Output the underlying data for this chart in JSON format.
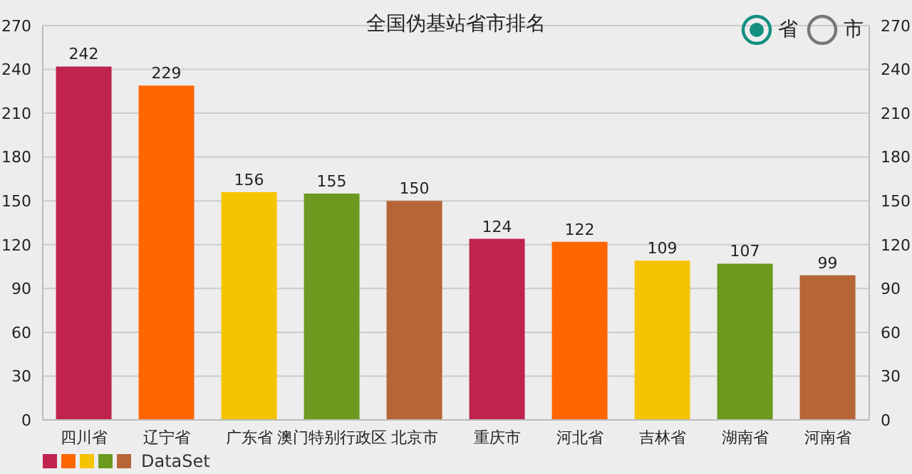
{
  "chart_data": {
    "type": "bar",
    "title": "全国伪基站省市排名",
    "categories": [
      "四川省",
      "辽宁省",
      "广东省",
      "澳门特别行政区",
      "北京市",
      "重庆市",
      "河北省",
      "吉林省",
      "湖南省",
      "河南省"
    ],
    "series": [
      {
        "name": "DataSet",
        "colors": [
          "#c1234f",
          "#ff6600",
          "#f5c400",
          "#6b9a1f",
          "#b56536",
          "#c1234f",
          "#ff6600",
          "#f5c400",
          "#6b9a1f",
          "#b56536"
        ],
        "values": [
          242,
          229,
          156,
          155,
          150,
          124,
          122,
          109,
          107,
          99
        ]
      }
    ],
    "ylim": [
      0,
      270
    ],
    "yticks": [
      0,
      30,
      60,
      90,
      120,
      150,
      180,
      210,
      240,
      270
    ],
    "y2lim": [
      0,
      270
    ],
    "y2ticks": [
      0,
      30,
      60,
      90,
      120,
      150,
      180,
      210,
      240,
      270
    ],
    "grid": "y",
    "legend": "bottom left",
    "data_labels": true,
    "annotations": [
      "省",
      "市"
    ]
  }
}
